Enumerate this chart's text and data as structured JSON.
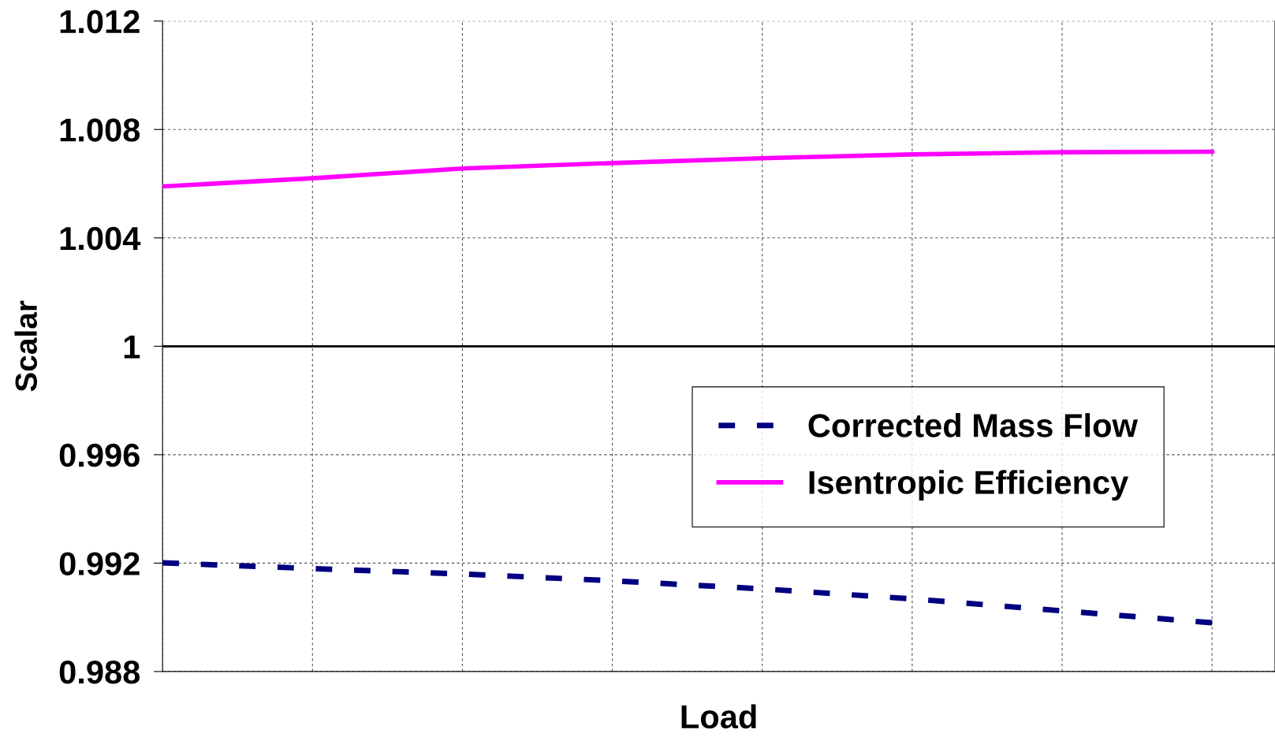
{
  "chart_data": {
    "type": "line",
    "xlabel": "Load",
    "ylabel": "Scalar",
    "categories": [
      null,
      null,
      null,
      null,
      null,
      null,
      null,
      null
    ],
    "series": [
      {
        "name": "Corrected Mass Flow",
        "color": "#000080",
        "line_style": "dashed",
        "values": [
          0.99201,
          0.9918,
          0.9916,
          0.99135,
          0.99105,
          0.99068,
          0.99024,
          0.9898
        ]
      },
      {
        "name": "Isentropic Efficiency",
        "color": "#ff00ff",
        "line_style": "solid",
        "values": [
          1.0059,
          1.0062,
          1.00656,
          1.00676,
          1.00694,
          1.00708,
          1.00716,
          1.00718
        ]
      }
    ],
    "ylim": [
      0.988,
      1.012
    ],
    "yticks": [
      0.988,
      0.992,
      0.996,
      1,
      1.004,
      1.008,
      1.012
    ],
    "ref_lines": [
      {
        "axis": "y",
        "value": 1,
        "color": "#000000"
      }
    ],
    "grid": true,
    "legend": "right",
    "tick_labels": "y"
  }
}
